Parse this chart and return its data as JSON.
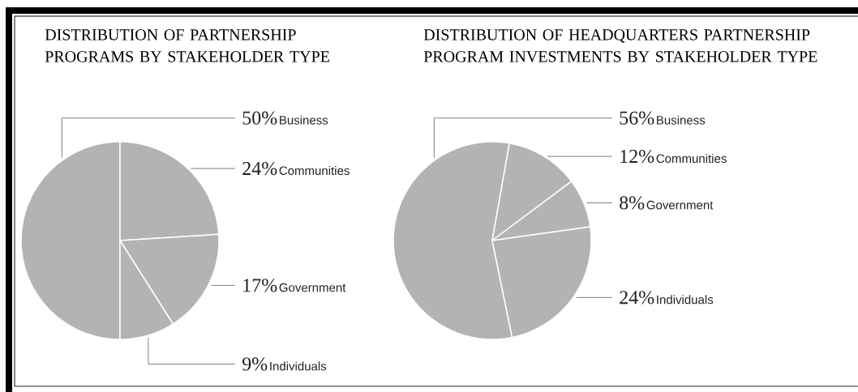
{
  "chart_data": [
    {
      "type": "pie",
      "title": "DISTRIBUTION OF PARTNERSHIP PROGRAMS BY STAKEHOLDER TYPE",
      "categories": [
        "Business",
        "Communities",
        "Government",
        "Individuals"
      ],
      "values": [
        50,
        24,
        17,
        9
      ],
      "value_labels": [
        "50%",
        "24%",
        "17%",
        "9%"
      ],
      "colors": [
        "#b3b3b3",
        "#b3b3b3",
        "#b3b3b3",
        "#b3b3b3"
      ]
    },
    {
      "type": "pie",
      "title": "DISTRIBUTION OF HEADQUARTERS PARTNERSHIP PROGRAM INVESTMENTS BY STAKEHOLDER TYPE",
      "categories": [
        "Business",
        "Communities",
        "Government",
        "Individuals"
      ],
      "values": [
        56,
        12,
        8,
        24
      ],
      "value_labels": [
        "56%",
        "12%",
        "8%",
        "24%"
      ],
      "colors": [
        "#b3b3b3",
        "#b3b3b3",
        "#b3b3b3",
        "#b3b3b3"
      ]
    }
  ]
}
